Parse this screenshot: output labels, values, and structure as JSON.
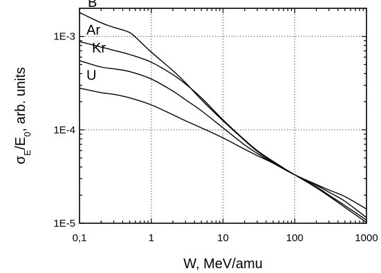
{
  "chart_data": {
    "type": "line",
    "xscale": "log",
    "yscale": "log",
    "xlim": [
      0.1,
      1000
    ],
    "ylim": [
      1e-05,
      0.002
    ],
    "grid": true,
    "xlabel": "W, MeV/amu",
    "ylabel_main": "σ",
    "ylabel_sub1": "E",
    "ylabel_slash": "/E",
    "ylabel_sub2": "0",
    "ylabel_rest": ", arb. units",
    "x_ticks": [
      {
        "value": 0.1,
        "label": "0,1"
      },
      {
        "value": 1,
        "label": "1"
      },
      {
        "value": 10,
        "label": "10"
      },
      {
        "value": 100,
        "label": "100"
      },
      {
        "value": 1000,
        "label": "1000"
      }
    ],
    "y_ticks": [
      {
        "value": 1e-05,
        "label": "1E-5"
      },
      {
        "value": 0.0001,
        "label": "1E-4"
      },
      {
        "value": 0.001,
        "label": "1E-3"
      }
    ],
    "series": [
      {
        "name": "B",
        "x": [
          0.1,
          0.2,
          0.3,
          0.5,
          0.7,
          1,
          2,
          3,
          5,
          10,
          20,
          30,
          50,
          100,
          200,
          300,
          500,
          1000
        ],
        "y": [
          0.0018,
          0.0014,
          0.00125,
          0.0011,
          0.00088,
          0.00068,
          0.00043,
          0.00032,
          0.00021,
          0.000125,
          7.7e-05,
          5.9e-05,
          4.5e-05,
          3.3e-05,
          2.4e-05,
          1.95e-05,
          1.48e-05,
          1.02e-05
        ]
      },
      {
        "name": "Ar",
        "x": [
          0.1,
          0.2,
          0.3,
          0.5,
          1,
          2,
          3,
          5,
          10,
          20,
          30,
          50,
          100,
          200,
          300,
          500,
          1000
        ],
        "y": [
          0.00088,
          0.00077,
          0.00071,
          0.00064,
          0.00053,
          0.00039,
          0.00031,
          0.00022,
          0.000128,
          7.8e-05,
          6e-05,
          4.6e-05,
          3.3e-05,
          2.45e-05,
          2e-05,
          1.55e-05,
          1.08e-05
        ]
      },
      {
        "name": "Kr",
        "x": [
          0.1,
          0.2,
          0.3,
          0.5,
          1,
          2,
          3,
          5,
          10,
          20,
          30,
          50,
          100,
          200,
          300,
          500,
          1000
        ],
        "y": [
          0.00055,
          0.00047,
          0.00045,
          0.00042,
          0.00035,
          0.00026,
          0.00021,
          0.00016,
          0.000105,
          6.9e-05,
          5.6e-05,
          4.4e-05,
          3.3e-05,
          2.55e-05,
          2.15e-05,
          1.72e-05,
          1.15e-05
        ]
      },
      {
        "name": "U",
        "x": [
          0.1,
          0.2,
          0.3,
          0.5,
          1,
          2,
          3,
          5,
          10,
          20,
          30,
          50,
          100,
          200,
          300,
          500,
          1000
        ],
        "y": [
          0.00028,
          0.00025,
          0.00024,
          0.00022,
          0.000185,
          0.000145,
          0.000125,
          0.000105,
          8.2e-05,
          6.2e-05,
          5.3e-05,
          4.4e-05,
          3.3e-05,
          2.6e-05,
          2.27e-05,
          1.93e-05,
          1.42e-05
        ]
      }
    ]
  }
}
